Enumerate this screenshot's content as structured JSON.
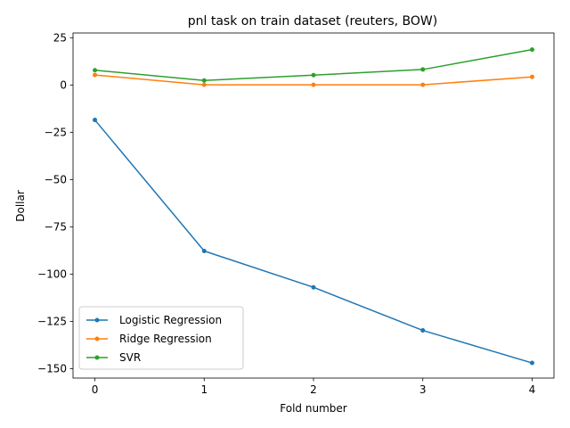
{
  "chart_data": {
    "type": "line",
    "title": "pnl task on train dataset (reuters, BOW)",
    "xlabel": "Fold number",
    "ylabel": "Dollar",
    "x": [
      0,
      1,
      2,
      3,
      4
    ],
    "xlim": [
      -0.2,
      4.2
    ],
    "ylim": [
      -155,
      27.5
    ],
    "xticks": [
      0,
      1,
      2,
      3,
      4
    ],
    "yticks": [
      25,
      0,
      -25,
      -50,
      -75,
      -100,
      -125,
      -150
    ],
    "xtick_labels": [
      "0",
      "1",
      "2",
      "3",
      "4"
    ],
    "ytick_labels": [
      "25",
      "0",
      "−25",
      "−50",
      "−75",
      "−100",
      "−125",
      "−150"
    ],
    "grid": false,
    "legend_position": "lower-left",
    "series": [
      {
        "name": "Logistic Regression",
        "color": "#1f77b4",
        "values": [
          -18.5,
          -87.8,
          -107.0,
          -129.8,
          -147.0
        ]
      },
      {
        "name": "Ridge Regression",
        "color": "#ff7f0e",
        "values": [
          5.3,
          0.1,
          0.1,
          0.1,
          4.3
        ]
      },
      {
        "name": "SVR",
        "color": "#2ca02c",
        "values": [
          7.8,
          2.4,
          5.2,
          8.2,
          18.7
        ]
      }
    ]
  }
}
